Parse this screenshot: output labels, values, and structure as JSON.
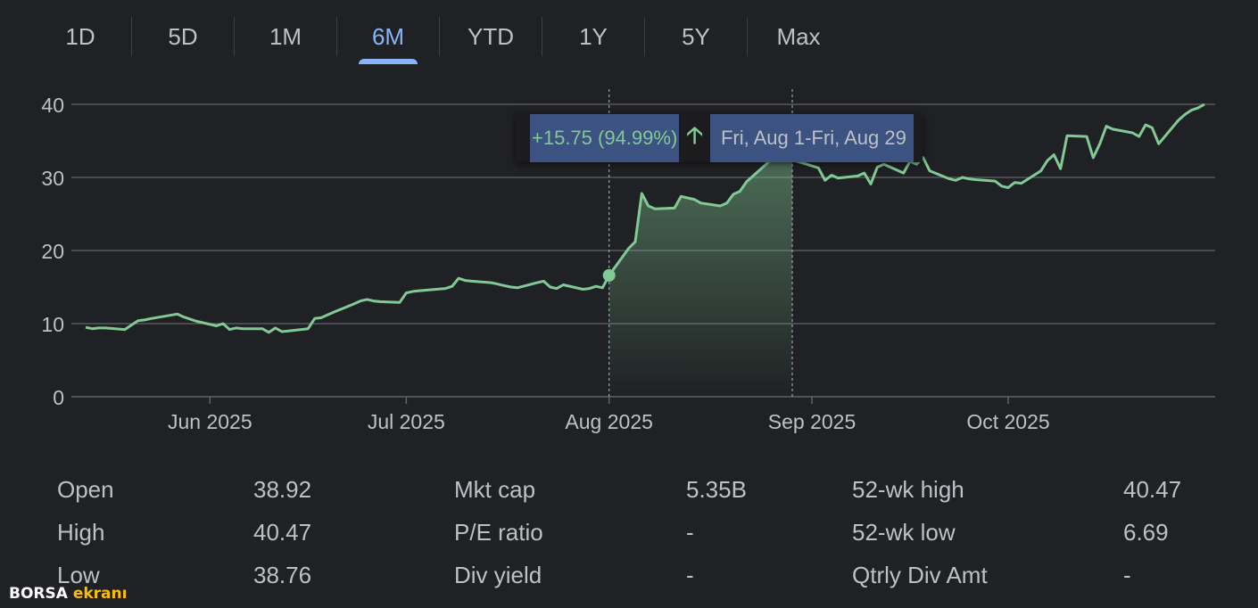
{
  "tabs": [
    {
      "label": "1D",
      "active": false
    },
    {
      "label": "5D",
      "active": false
    },
    {
      "label": "1M",
      "active": false
    },
    {
      "label": "6M",
      "active": true
    },
    {
      "label": "YTD",
      "active": false
    },
    {
      "label": "1Y",
      "active": false
    },
    {
      "label": "5Y",
      "active": false
    },
    {
      "label": "Max",
      "active": false
    }
  ],
  "tooltip": {
    "change": "+15.75 (94.99%)",
    "arrow_icon": "arrow-up-icon",
    "range": "Fri, Aug 1-Fri, Aug 29"
  },
  "colors": {
    "line": "#81c995",
    "active_tab": "#8ab4f8",
    "background": "#202124"
  },
  "chart_data": {
    "type": "line",
    "x_ticks": [
      "Jun 2025",
      "Jul 2025",
      "Aug 2025",
      "Sep 2025",
      "Oct 2025"
    ],
    "y_ticks": [
      0,
      10,
      20,
      30,
      40
    ],
    "ylim": [
      0,
      40
    ],
    "selection": {
      "start": "Aug 1, 2025",
      "end": "Aug 29, 2025",
      "start_value": 16.6,
      "end_value": 32.4
    },
    "series": [
      {
        "x": [
          "2025-05-13",
          "2025-05-14",
          "2025-05-15",
          "2025-05-16",
          "2025-05-19",
          "2025-05-20",
          "2025-05-21",
          "2025-05-22",
          "2025-05-23",
          "2025-05-27",
          "2025-05-28",
          "2025-05-29",
          "2025-05-30",
          "2025-06-02",
          "2025-06-03",
          "2025-06-04",
          "2025-06-05",
          "2025-06-06",
          "2025-06-09",
          "2025-06-10",
          "2025-06-11",
          "2025-06-12",
          "2025-06-13",
          "2025-06-16",
          "2025-06-17",
          "2025-06-18",
          "2025-06-20",
          "2025-06-23",
          "2025-06-24",
          "2025-06-25",
          "2025-06-26",
          "2025-06-27",
          "2025-06-30",
          "2025-07-01",
          "2025-07-02",
          "2025-07-03",
          "2025-07-07",
          "2025-07-08",
          "2025-07-09",
          "2025-07-10",
          "2025-07-11",
          "2025-07-14",
          "2025-07-15",
          "2025-07-16",
          "2025-07-17",
          "2025-07-18",
          "2025-07-21",
          "2025-07-22",
          "2025-07-23",
          "2025-07-24",
          "2025-07-25",
          "2025-07-28",
          "2025-07-29",
          "2025-07-30",
          "2025-07-31",
          "2025-08-01",
          "2025-08-04",
          "2025-08-05",
          "2025-08-06",
          "2025-08-07",
          "2025-08-08",
          "2025-08-11",
          "2025-08-12",
          "2025-08-13",
          "2025-08-14",
          "2025-08-15",
          "2025-08-18",
          "2025-08-19",
          "2025-08-20",
          "2025-08-21",
          "2025-08-22",
          "2025-08-25",
          "2025-08-26",
          "2025-08-27",
          "2025-08-28",
          "2025-08-29",
          "2025-09-02",
          "2025-09-03",
          "2025-09-04",
          "2025-09-05",
          "2025-09-08",
          "2025-09-09",
          "2025-09-10",
          "2025-09-11",
          "2025-09-12",
          "2025-09-15",
          "2025-09-16",
          "2025-09-17",
          "2025-09-18",
          "2025-09-19",
          "2025-09-22",
          "2025-09-23",
          "2025-09-24",
          "2025-09-25",
          "2025-09-26",
          "2025-09-29",
          "2025-09-30",
          "2025-10-01",
          "2025-10-02",
          "2025-10-03",
          "2025-10-06",
          "2025-10-07",
          "2025-10-08",
          "2025-10-09",
          "2025-10-10",
          "2025-10-13",
          "2025-10-14",
          "2025-10-15",
          "2025-10-16",
          "2025-10-17",
          "2025-10-20",
          "2025-10-21",
          "2025-10-22",
          "2025-10-23",
          "2025-10-24",
          "2025-10-27",
          "2025-10-28",
          "2025-10-29",
          "2025-10-30",
          "2025-10-31"
        ],
        "y": [
          9.5,
          9.3,
          9.4,
          9.4,
          9.2,
          9.8,
          10.4,
          10.5,
          10.7,
          11.3,
          10.9,
          10.6,
          10.3,
          9.7,
          10.0,
          9.2,
          9.4,
          9.3,
          9.3,
          8.8,
          9.4,
          8.9,
          9.0,
          9.3,
          10.7,
          10.8,
          11.6,
          12.7,
          13.1,
          13.3,
          13.1,
          13.0,
          12.9,
          14.2,
          14.4,
          14.5,
          14.8,
          15.1,
          16.2,
          15.9,
          15.8,
          15.6,
          15.4,
          15.2,
          15.0,
          14.9,
          15.6,
          15.8,
          15.0,
          14.8,
          15.3,
          14.7,
          14.8,
          15.1,
          14.9,
          16.6,
          20.3,
          21.2,
          27.8,
          26.1,
          25.7,
          25.8,
          27.4,
          27.2,
          27.0,
          26.5,
          26.1,
          26.5,
          27.7,
          28.1,
          29.4,
          31.8,
          32.6,
          32.8,
          32.5,
          32.4,
          31.3,
          29.6,
          30.3,
          29.9,
          30.2,
          30.6,
          29.1,
          31.4,
          31.8,
          30.6,
          32.2,
          31.8,
          32.7,
          30.9,
          29.8,
          29.6,
          30.0,
          29.8,
          29.7,
          29.5,
          28.8,
          28.6,
          29.3,
          29.2,
          30.9,
          32.3,
          33.1,
          31.2,
          35.7,
          35.6,
          32.7,
          34.6,
          37.0,
          36.6,
          36.1,
          35.6,
          37.2,
          36.8,
          34.6,
          37.8,
          38.6,
          39.2,
          39.5,
          40.0
        ]
      }
    ]
  },
  "stats": [
    [
      {
        "label": "Open",
        "value": "38.92"
      },
      {
        "label": "Mkt cap",
        "value": "5.35B"
      },
      {
        "label": "52-wk high",
        "value": "40.47"
      }
    ],
    [
      {
        "label": "High",
        "value": "40.47"
      },
      {
        "label": "P/E ratio",
        "value": "-"
      },
      {
        "label": "52-wk low",
        "value": "6.69"
      }
    ],
    [
      {
        "label": "Low",
        "value": "38.76"
      },
      {
        "label": "Div yield",
        "value": "-"
      },
      {
        "label": "Qtrly Div Amt",
        "value": "-"
      }
    ]
  ],
  "watermark": {
    "part1": "BORSA",
    "part2": "ekranı"
  }
}
